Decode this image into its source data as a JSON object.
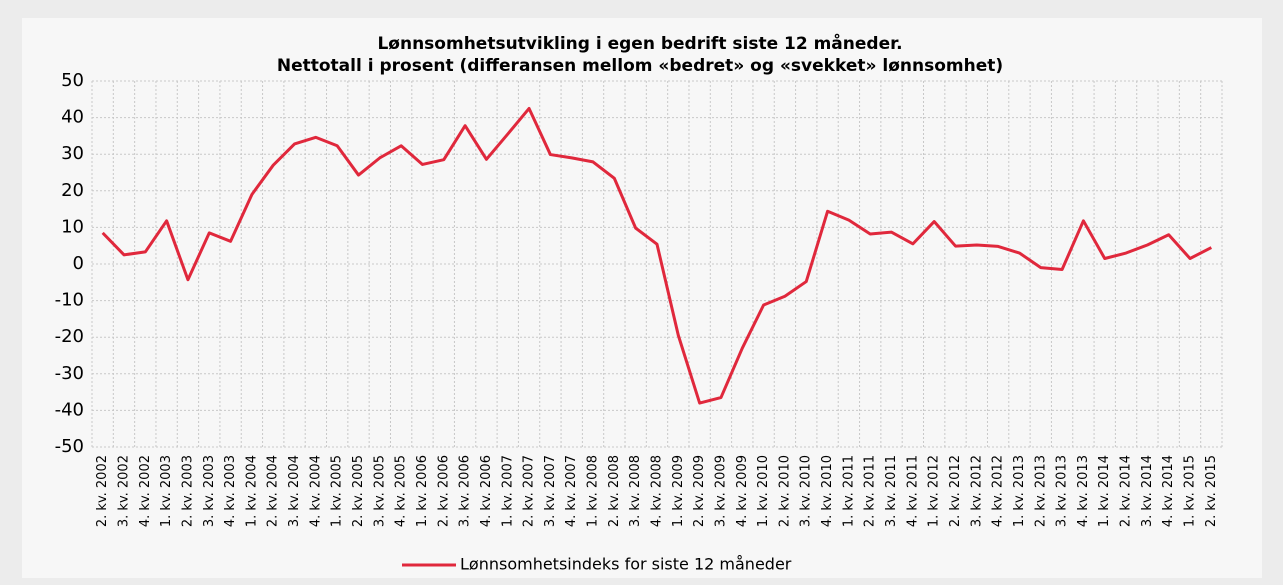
{
  "chart_data": {
    "type": "line",
    "title": "Lønnsomhetsutvikling i egen bedrift siste 12 måneder.",
    "subtitle": "Nettotall i prosent (differansen mellom «bedret» og «svekket» lønnsomhet)",
    "categories": [
      "2. kv. 2002",
      "3. kv. 2002",
      "4. kv. 2002",
      "1. kv. 2003",
      "2. kv. 2003",
      "3. kv. 2003",
      "4. kv. 2003",
      "1. kv. 2004",
      "2. kv. 2004",
      "3. kv. 2004",
      "4. kv. 2004",
      "1. kv. 2005",
      "2. kv. 2005",
      "3. kv. 2005",
      "4. kv. 2005",
      "1. kv. 2006",
      "2. kv. 2006",
      "3. kv. 2006",
      "4. kv. 2006",
      "1. kv. 2007",
      "2. kv. 2007",
      "3. kv. 2007",
      "4. kv. 2007",
      "1. kv. 2008",
      "2. kv. 2008",
      "3. kv. 2008",
      "4. kv. 2008",
      "1. kv. 2009",
      "2. kv. 2009",
      "3. kv. 2009",
      "4. kv. 2009",
      "1. kv. 2010",
      "2. kv. 2010",
      "3. kv. 2010",
      "4. kv. 2010",
      "1. kv. 2011",
      "2. kv. 2011",
      "3. kv. 2011",
      "4. kv. 2011",
      "1. kv. 2012",
      "2. kv. 2012",
      "3. kv. 2012",
      "4. kv. 2012",
      "1. kv. 2013",
      "2. kv. 2013",
      "3. kv. 2013",
      "4. kv. 2013",
      "1. kv. 2014",
      "2. kv. 2014",
      "3. kv. 2014",
      "4. kv. 2014",
      "1. kv. 2015",
      "2. kv. 2015"
    ],
    "series": [
      {
        "name": "Lønnsomhetsindeks for siste 12 måneder",
        "color": "#e0283c",
        "values": [
          8.5,
          2.5,
          3.3,
          11.8,
          -4.3,
          8.5,
          6.2,
          19,
          27,
          32.8,
          34.6,
          32.3,
          24.3,
          29,
          32.3,
          27.2,
          28.5,
          37.8,
          28.6,
          35.5,
          42.5,
          29.9,
          29,
          27.9,
          23.4,
          9.8,
          5.4,
          -19.5,
          -38,
          -36.5,
          -23,
          -11.2,
          -8.8,
          -4.8,
          14.4,
          12,
          8.2,
          8.7,
          5.5,
          11.6,
          4.9,
          5.2,
          4.8,
          3,
          -1,
          -1.5,
          11.8,
          1.5,
          3,
          5.2,
          8,
          1.5,
          4.5
        ]
      }
    ],
    "ylim": [
      -50,
      50
    ],
    "yticks": [
      -50,
      -40,
      -30,
      -20,
      -10,
      0,
      10,
      20,
      30,
      40,
      50
    ],
    "grid": true
  }
}
